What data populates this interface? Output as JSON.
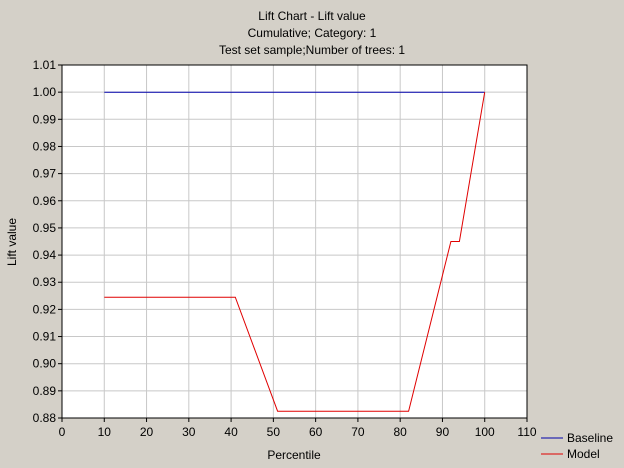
{
  "chart_data": {
    "type": "line",
    "title_lines": [
      "Lift Chart - Lift value",
      "Cumulative; Category: 1",
      "Test set sample;Number of trees: 1"
    ],
    "xlabel": "Percentile",
    "ylabel": "Lift value",
    "xlim": [
      0,
      110
    ],
    "ylim": [
      0.88,
      1.01
    ],
    "x_ticks": [
      "0",
      "10",
      "20",
      "30",
      "40",
      "50",
      "60",
      "70",
      "80",
      "90",
      "100",
      "110"
    ],
    "y_ticks": [
      "1.01",
      "1.00",
      "0.99",
      "0.98",
      "0.97",
      "0.96",
      "0.95",
      "0.94",
      "0.93",
      "0.92",
      "0.91",
      "0.90",
      "0.89",
      "0.88"
    ],
    "grid": true,
    "legend_position": "bottom-right",
    "series": [
      {
        "name": "Baseline",
        "color": "#0000aa",
        "x": [
          10,
          100
        ],
        "y": [
          1.0,
          1.0
        ]
      },
      {
        "name": "Model",
        "color": "#e00000",
        "x": [
          10,
          41,
          51,
          82,
          92,
          94,
          100
        ],
        "y": [
          0.9245,
          0.9245,
          0.8825,
          0.8825,
          0.945,
          0.945,
          1.0
        ]
      }
    ]
  }
}
